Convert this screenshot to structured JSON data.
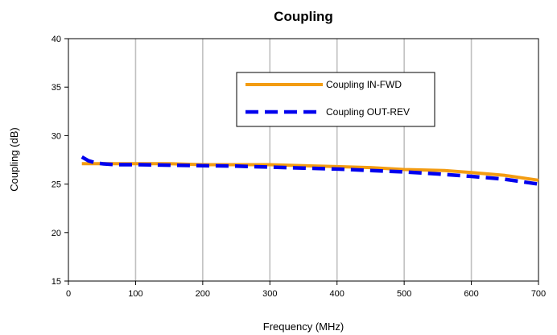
{
  "chart_data": {
    "type": "line",
    "title": "Coupling",
    "xlabel": "Frequency (MHz)",
    "ylabel": "Coupling (dB)",
    "xlim": [
      0,
      700
    ],
    "ylim": [
      15,
      40
    ],
    "x_ticks": [
      0,
      100,
      200,
      300,
      400,
      500,
      600,
      700
    ],
    "y_ticks": [
      15,
      20,
      25,
      30,
      35,
      40
    ],
    "grid": "vertical",
    "legend_position": "upper-right",
    "series": [
      {
        "name": "Coupling IN-FWD",
        "color": "#f39c12",
        "style": "solid",
        "x": [
          20,
          50,
          100,
          150,
          200,
          250,
          300,
          350,
          400,
          450,
          500,
          560,
          600,
          650,
          700
        ],
        "y": [
          27.1,
          27.1,
          27.1,
          27.1,
          27.0,
          27.0,
          27.0,
          26.9,
          26.8,
          26.7,
          26.5,
          26.4,
          26.2,
          25.9,
          25.4
        ]
      },
      {
        "name": "Coupling OUT-REV",
        "color": "#0000ee",
        "style": "dashed",
        "x": [
          20,
          30,
          40,
          50,
          70,
          100,
          150,
          200,
          250,
          300,
          350,
          400,
          450,
          500,
          550,
          600,
          650,
          700
        ],
        "y": [
          27.8,
          27.4,
          27.2,
          27.1,
          27.0,
          27.0,
          26.95,
          26.9,
          26.85,
          26.75,
          26.65,
          26.55,
          26.4,
          26.25,
          26.05,
          25.8,
          25.5,
          25.0
        ]
      }
    ]
  }
}
